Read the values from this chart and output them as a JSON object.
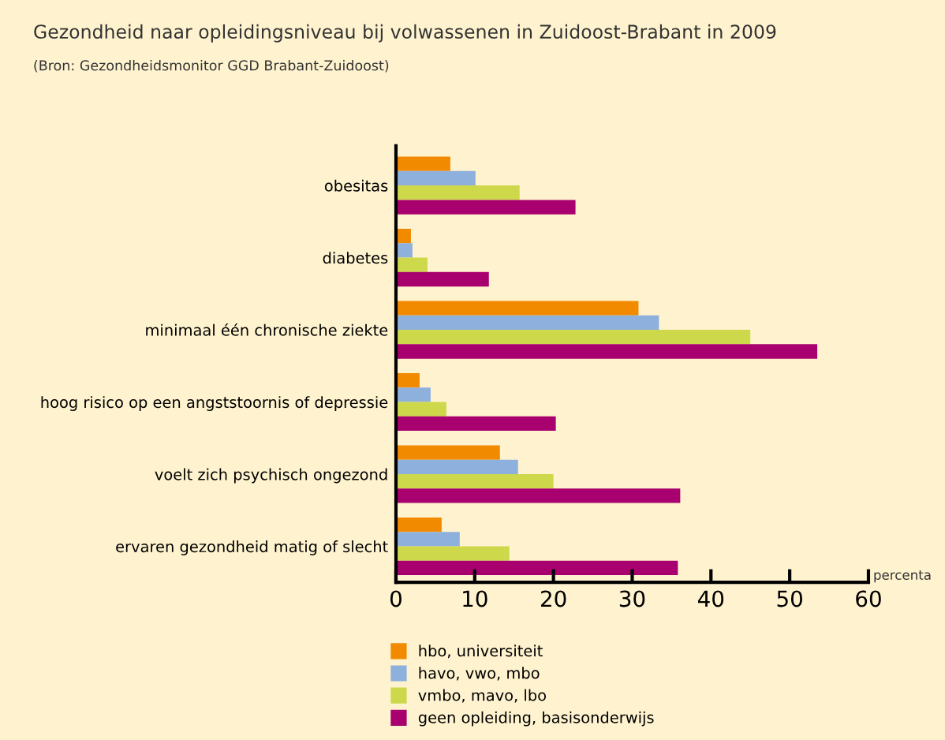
{
  "chart_data": {
    "type": "bar",
    "orientation": "horizontal",
    "title": "Gezondheid naar opleidingsniveau bij volwassenen in Zuidoost-Brabant in 2009",
    "subtitle": "(Bron: Gezondheidsmonitor GGD Brabant-Zuidoost)",
    "xlabel": "percenta",
    "categories": [
      "obesitas",
      "diabetes",
      "minimaal één chronische ziekte",
      "hoog risico op een angststoornis of depressie",
      "voelt zich psychisch ongezond",
      "ervaren gezondheid matig of slecht"
    ],
    "series": [
      {
        "name": "hbo, universiteit",
        "color": "#f28a00",
        "values": [
          6.9,
          1.9,
          30.8,
          3.0,
          13.2,
          5.8
        ]
      },
      {
        "name": "havo, vwo, mbo",
        "color": "#8eb0dc",
        "values": [
          10.1,
          2.1,
          33.4,
          4.4,
          15.5,
          8.1
        ]
      },
      {
        "name": "vmbo, mavo, lbo",
        "color": "#cdd84a",
        "values": [
          15.7,
          4.0,
          45.0,
          6.4,
          20.0,
          14.4
        ]
      },
      {
        "name": "geen opleiding, basisonderwijs",
        "color": "#a8006e",
        "values": [
          22.8,
          11.8,
          53.5,
          20.3,
          36.1,
          35.8
        ]
      }
    ],
    "xlim": [
      0,
      60
    ],
    "xticks": [
      0,
      10,
      20,
      30,
      40,
      50,
      60
    ],
    "grid": false,
    "legend": "bottom left"
  }
}
